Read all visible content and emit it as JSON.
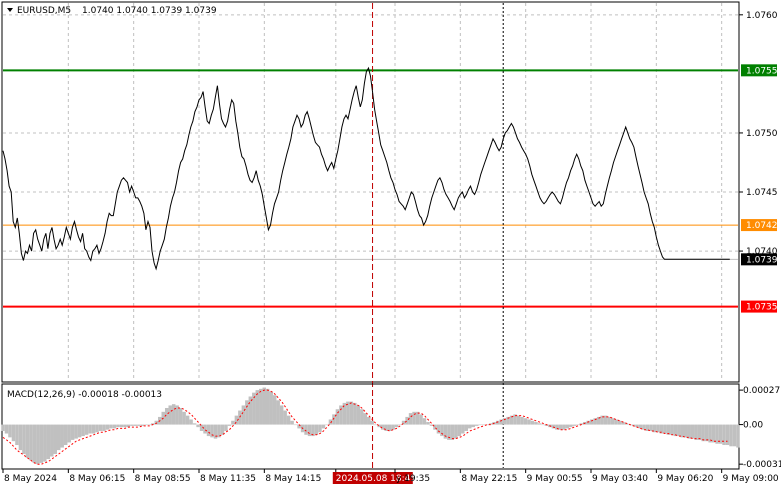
{
  "chart_data": [
    {
      "type": "line",
      "header": {
        "symbol": "EURUSD,M5",
        "ohlc": "1.0740 1.0740 1.0739 1.0739"
      },
      "ylim": [
        1.0729,
        1.0761
      ],
      "y_ticks": [
        "1.0760",
        "1.0750",
        "1.0745",
        "1.0740"
      ],
      "y_tick_values": [
        1.076,
        1.075,
        1.0745,
        1.074
      ],
      "grid": true,
      "price_levels": [
        {
          "label": "1.0755",
          "value": 1.07553,
          "color": "#008000"
        },
        {
          "label": "1.0742",
          "value": 1.07422,
          "color": "#ff8c00"
        },
        {
          "label": "1.0735",
          "value": 1.07353,
          "color": "#ff0000"
        }
      ],
      "current_price": {
        "label": "1.0739",
        "value": 1.07393
      },
      "x_labels": [
        "8 May 2024",
        "8 May 06:15",
        "8 May 08:55",
        "8 May 11:35",
        "8 May 14:15",
        "2024.05.08 18:45",
        "y 19:35",
        "8 May 22:15",
        "9 May 00:55",
        "9 May 03:40",
        "9 May 06:20",
        "9 May 09:00"
      ],
      "x_label_index": [
        0,
        32,
        64,
        96,
        128,
        163,
        192,
        224,
        256,
        288,
        320,
        352
      ],
      "crosshair_index": 181,
      "day_separator_index": 245,
      "n_bars": 361,
      "close_series": [
        1.07485,
        1.07478,
        1.07468,
        1.07455,
        1.0745,
        1.07425,
        1.0742,
        1.07428,
        1.07415,
        1.07398,
        1.07392,
        1.074,
        1.07398,
        1.07405,
        1.074,
        1.07415,
        1.07418,
        1.0741,
        1.07405,
        1.074,
        1.0741,
        1.07415,
        1.07402,
        1.07415,
        1.0742,
        1.0741,
        1.07402,
        1.07405,
        1.0741,
        1.07405,
        1.07412,
        1.0742,
        1.07415,
        1.0741,
        1.0742,
        1.07425,
        1.07418,
        1.07412,
        1.07408,
        1.07415,
        1.07402,
        1.074,
        1.07395,
        1.07392,
        1.074,
        1.07402,
        1.07405,
        1.07398,
        1.07402,
        1.07408,
        1.07415,
        1.07425,
        1.07432,
        1.0743,
        1.0743,
        1.0744,
        1.0745,
        1.07455,
        1.0746,
        1.07462,
        1.0746,
        1.07458,
        1.0745,
        1.07455,
        1.0745,
        1.07445,
        1.07445,
        1.07442,
        1.07438,
        1.07432,
        1.07418,
        1.07425,
        1.0742,
        1.074,
        1.0739,
        1.07385,
        1.07392,
        1.074,
        1.07405,
        1.0741,
        1.0742,
        1.07428,
        1.07438,
        1.07445,
        1.0745,
        1.07458,
        1.07468,
        1.07475,
        1.07478,
        1.07485,
        1.0749,
        1.07498,
        1.07505,
        1.0751,
        1.07518,
        1.07522,
        1.07528,
        1.0753,
        1.07535,
        1.07522,
        1.0751,
        1.07508,
        1.07515,
        1.0752,
        1.0753,
        1.0754,
        1.07525,
        1.07512,
        1.07508,
        1.07505,
        1.0751,
        1.0752,
        1.07528,
        1.07525,
        1.0751,
        1.075,
        1.07488,
        1.0748,
        1.07478,
        1.07472,
        1.07465,
        1.0746,
        1.07458,
        1.07462,
        1.07468,
        1.0746,
        1.07455,
        1.07448,
        1.07438,
        1.07428,
        1.07418,
        1.07422,
        1.07432,
        1.0744,
        1.07445,
        1.0745,
        1.0746,
        1.07468,
        1.07475,
        1.07482,
        1.07488,
        1.07495,
        1.07505,
        1.0751,
        1.07515,
        1.07512,
        1.07505,
        1.07508,
        1.07515,
        1.07518,
        1.07512,
        1.07505,
        1.07498,
        1.07492,
        1.0749,
        1.07488,
        1.07482,
        1.07478,
        1.07472,
        1.07468,
        1.07472,
        1.07475,
        1.0747,
        1.07478,
        1.07485,
        1.07495,
        1.07505,
        1.07512,
        1.07515,
        1.07512,
        1.0752,
        1.07528,
        1.07535,
        1.0754,
        1.0753,
        1.07522,
        1.07528,
        1.07542,
        1.07552,
        1.07555,
        1.07548,
        1.07535,
        1.0752,
        1.0751,
        1.075,
        1.0749,
        1.07485,
        1.0748,
        1.07475,
        1.07468,
        1.07462,
        1.07458,
        1.07452,
        1.07448,
        1.07442,
        1.0744,
        1.07438,
        1.07435,
        1.0744,
        1.07445,
        1.0745,
        1.07448,
        1.07442,
        1.07435,
        1.0743,
        1.07428,
        1.07422,
        1.07425,
        1.0743,
        1.07438,
        1.07445,
        1.0745,
        1.07455,
        1.0746,
        1.07462,
        1.07458,
        1.07452,
        1.07448,
        1.07445,
        1.07442,
        1.07438,
        1.07435,
        1.0744,
        1.07445,
        1.07448,
        1.0745,
        1.07445,
        1.07448,
        1.07452,
        1.07455,
        1.0745,
        1.07448,
        1.07452,
        1.07458,
        1.07465,
        1.0747,
        1.07475,
        1.0748,
        1.07485,
        1.0749,
        1.07495,
        1.07492,
        1.07488,
        1.07485,
        1.07488,
        1.07495,
        1.075,
        1.07502,
        1.07505,
        1.07508,
        1.07505,
        1.075,
        1.07495,
        1.07492,
        1.07488,
        1.07485,
        1.07482,
        1.07478,
        1.07472,
        1.07465,
        1.0746,
        1.07455,
        1.0745,
        1.07445,
        1.07442,
        1.0744,
        1.07442,
        1.07445,
        1.07448,
        1.0745,
        1.07448,
        1.07445,
        1.07442,
        1.0744,
        1.07445,
        1.07452,
        1.07458,
        1.07462,
        1.07468,
        1.07472,
        1.07478,
        1.07482,
        1.07478,
        1.07472,
        1.07468,
        1.0746,
        1.07455,
        1.0745,
        1.07445,
        1.0744,
        1.07438,
        1.0744,
        1.07442,
        1.07438,
        1.0744,
        1.07448,
        1.07455,
        1.07462,
        1.07468,
        1.07475,
        1.0748,
        1.07485,
        1.0749,
        1.07495,
        1.075,
        1.07505,
        1.075,
        1.07495,
        1.07492,
        1.07488,
        1.0748,
        1.07472,
        1.07465,
        1.07458,
        1.0745,
        1.07445,
        1.0744,
        1.07432,
        1.07425,
        1.0742,
        1.07412,
        1.07405,
        1.074,
        1.07395,
        1.07393,
        1.07393,
        1.07393,
        1.07393,
        1.07393,
        1.07393,
        1.07393,
        1.07393,
        1.07393,
        1.07393,
        1.07393,
        1.07393,
        1.07393,
        1.07393,
        1.07393,
        1.07393,
        1.07393,
        1.07393,
        1.07393,
        1.07393,
        1.07393,
        1.07393,
        1.07393,
        1.07393,
        1.07393,
        1.07393,
        1.07393,
        1.07393,
        1.07393,
        1.07393,
        1.07393,
        1.07393,
        1.07393
      ]
    },
    {
      "type": "bar",
      "header": "MACD(12,26,9) -0.00018 -0.00013",
      "ylim": [
        -0.00034,
        0.00031
      ],
      "y_ticks": [
        "0.00027",
        "0.00",
        "-0.00031"
      ],
      "y_tick_values": [
        0.00027,
        0.0,
        -0.00031
      ],
      "histogram": [
        -5e-05,
        -7e-05,
        -0.0001,
        -0.00013,
        -0.00016,
        -0.0002,
        -0.00023,
        -0.00026,
        -0.00028,
        -0.0003,
        -0.00031,
        -0.0003,
        -0.00029,
        -0.00027,
        -0.00025,
        -0.00023,
        -0.0002,
        -0.00018,
        -0.00016,
        -0.00014,
        -0.00012,
        -0.00011,
        -0.0001,
        -9e-05,
        -8e-05,
        -7e-05,
        -7e-05,
        -6e-05,
        -5e-05,
        -5e-05,
        -4e-05,
        -3e-05,
        -3e-05,
        -2e-05,
        -2e-05,
        -2e-05,
        -2e-05,
        -1e-05,
        -1e-05,
        -1e-05,
        -1e-05,
        0.0,
        0.0,
        1e-05,
        3e-05,
        6e-05,
        0.0001,
        0.00013,
        0.00015,
        0.00016,
        0.00015,
        0.00013,
        0.0001,
        7e-05,
        4e-05,
        1e-05,
        -2e-05,
        -5e-05,
        -7e-05,
        -9e-05,
        -0.0001,
        -0.00011,
        -0.0001,
        -8e-05,
        -5e-05,
        -1e-05,
        3e-05,
        7e-05,
        0.00011,
        0.00015,
        0.00019,
        0.00022,
        0.00025,
        0.00027,
        0.00028,
        0.00029,
        0.00028,
        0.00026,
        0.00023,
        0.00019,
        0.00015,
        0.00011,
        7e-05,
        3e-05,
        0.0,
        -3e-05,
        -6e-05,
        -8e-05,
        -9e-05,
        -9e-05,
        -8e-05,
        -6e-05,
        -3e-05,
        0.0,
        4e-05,
        8e-05,
        0.00012,
        0.00015,
        0.00017,
        0.00018,
        0.00018,
        0.00017,
        0.00015,
        0.00012,
        9e-05,
        6e-05,
        3e-05,
        0.0,
        -2e-05,
        -4e-05,
        -5e-05,
        -5e-05,
        -4e-05,
        -2e-05,
        0.0,
        3e-05,
        6e-05,
        9e-05,
        0.0001,
        0.0001,
        8e-05,
        5e-05,
        2e-05,
        -1e-05,
        -4e-05,
        -7e-05,
        -9e-05,
        -0.00011,
        -0.00012,
        -0.00012,
        -0.00011,
        -9e-05,
        -7e-05,
        -5e-05,
        -3e-05,
        -2e-05,
        -1e-05,
        0.0,
        0.0,
        0.0,
        1e-05,
        2e-05,
        3e-05,
        4e-05,
        5e-05,
        6e-05,
        7e-05,
        8e-05,
        7e-05,
        6e-05,
        5e-05,
        4e-05,
        3e-05,
        2e-05,
        1e-05,
        0.0,
        -1e-05,
        -2e-05,
        -3e-05,
        -4e-05,
        -4e-05,
        -4e-05,
        -3e-05,
        -2e-05,
        -1e-05,
        0.0,
        1e-05,
        2e-05,
        3e-05,
        4e-05,
        5e-05,
        6e-05,
        7e-05,
        7e-05,
        6e-05,
        5e-05,
        4e-05,
        3e-05,
        2e-05,
        1e-05,
        0.0,
        -1e-05,
        -2e-05,
        -3e-05,
        -4e-05,
        -5e-05,
        -5e-05,
        -6e-05,
        -6e-05,
        -7e-05,
        -7e-05,
        -8e-05,
        -8e-05,
        -9e-05,
        -9e-05,
        -0.0001,
        -0.0001,
        -0.00011,
        -0.00011,
        -0.00012,
        -0.00012,
        -0.00013,
        -0.00013,
        -0.00014,
        -0.00014,
        -0.00015,
        -0.00015,
        -0.00016,
        -0.00016,
        -0.00017,
        -0.00017,
        -0.00018
      ],
      "signal": [
        -0.0001,
        -0.00012,
        -0.00014,
        -0.00017,
        -0.0002,
        -0.00022,
        -0.00024,
        -0.00026,
        -0.00028,
        -0.0003,
        -0.00031,
        -0.00031,
        -0.0003,
        -0.00029,
        -0.00027,
        -0.00025,
        -0.00023,
        -0.00021,
        -0.00019,
        -0.00017,
        -0.00015,
        -0.00013,
        -0.00012,
        -0.00011,
        -0.0001,
        -9e-05,
        -8e-05,
        -7e-05,
        -6e-05,
        -6e-05,
        -5e-05,
        -4e-05,
        -4e-05,
        -3e-05,
        -3e-05,
        -3e-05,
        -2e-05,
        -2e-05,
        -2e-05,
        -2e-05,
        -1e-05,
        -1e-05,
        -1e-05,
        0.0,
        1e-05,
        3e-05,
        5e-05,
        8e-05,
        0.0001,
        0.00012,
        0.00013,
        0.00013,
        0.00012,
        0.0001,
        8e-05,
        5e-05,
        2e-05,
        -1e-05,
        -4e-05,
        -6e-05,
        -8e-05,
        -9e-05,
        -9e-05,
        -8e-05,
        -6e-05,
        -4e-05,
        -1e-05,
        2e-05,
        6e-05,
        0.0001,
        0.00014,
        0.00018,
        0.00021,
        0.00024,
        0.00026,
        0.00027,
        0.00027,
        0.00026,
        0.00024,
        0.00021,
        0.00018,
        0.00014,
        0.0001,
        6e-05,
        3e-05,
        0.0,
        -3e-05,
        -5e-05,
        -7e-05,
        -8e-05,
        -8e-05,
        -7e-05,
        -5e-05,
        -2e-05,
        1e-05,
        5e-05,
        9e-05,
        0.00012,
        0.00015,
        0.00016,
        0.00017,
        0.00016,
        0.00015,
        0.00013,
        0.0001,
        7e-05,
        4e-05,
        1e-05,
        -1e-05,
        -3e-05,
        -4e-05,
        -5e-05,
        -4e-05,
        -3e-05,
        -1e-05,
        1e-05,
        3e-05,
        6e-05,
        8e-05,
        9e-05,
        9e-05,
        7e-05,
        4e-05,
        1e-05,
        -2e-05,
        -5e-05,
        -7e-05,
        -9e-05,
        -0.0001,
        -0.00011,
        -0.00011,
        -0.0001,
        -9e-05,
        -7e-05,
        -5e-05,
        -4e-05,
        -3e-05,
        -2e-05,
        -1e-05,
        0.0,
        0.0,
        1e-05,
        2e-05,
        3e-05,
        4e-05,
        5e-05,
        6e-05,
        7e-05,
        7e-05,
        7e-05,
        6e-05,
        5e-05,
        4e-05,
        3e-05,
        2e-05,
        1e-05,
        0.0,
        -1e-05,
        -2e-05,
        -3e-05,
        -4e-05,
        -4e-05,
        -4e-05,
        -3e-05,
        -2e-05,
        -1e-05,
        0.0,
        1e-05,
        2e-05,
        3e-05,
        4e-05,
        5e-05,
        6e-05,
        6e-05,
        6e-05,
        5e-05,
        4e-05,
        3e-05,
        2e-05,
        1e-05,
        0.0,
        -1e-05,
        -2e-05,
        -3e-05,
        -4e-05,
        -4e-05,
        -5e-05,
        -5e-05,
        -6e-05,
        -6e-05,
        -7e-05,
        -7e-05,
        -8e-05,
        -8e-05,
        -9e-05,
        -9e-05,
        -0.0001,
        -0.0001,
        -0.00011,
        -0.00011,
        -0.00011,
        -0.00012,
        -0.00012,
        -0.00012,
        -0.00013,
        -0.00013,
        -0.00013,
        -0.00013,
        -0.00013
      ],
      "colors": {
        "histogram": "#c0c0c0",
        "signal": "#ff0000"
      }
    }
  ],
  "colors": {
    "background": "#ffffff",
    "grid": "#c0c0c0",
    "price_line": "#000000",
    "axis_text": "#000000",
    "crosshair": "#c00000",
    "current_price_tag_bg": "#000000",
    "current_price_tag_fg": "#ffffff",
    "level_tag_fg": "#ffffff"
  },
  "header_arrow_icon": "triangle-down-icon"
}
